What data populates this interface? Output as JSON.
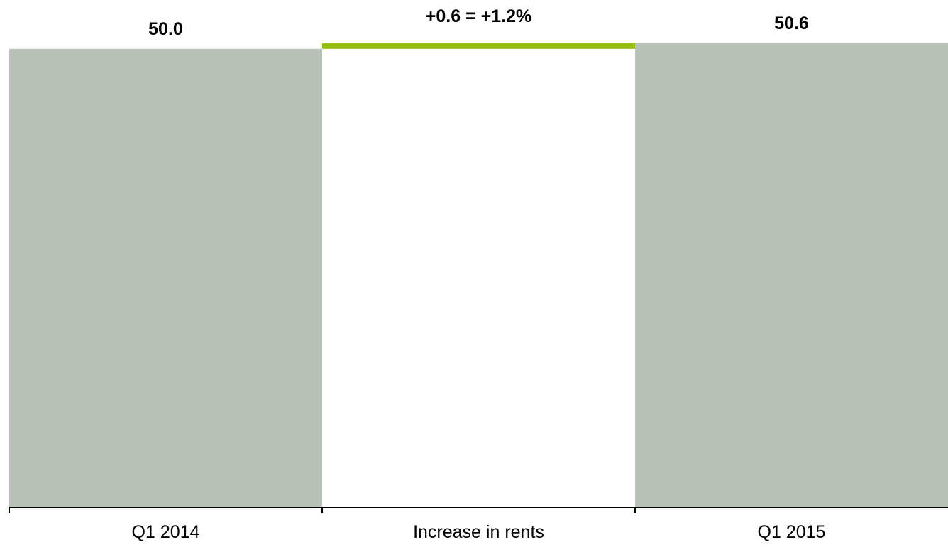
{
  "chart_data": {
    "type": "bar",
    "subtype": "waterfall",
    "categories": [
      "Q1 2014",
      "Increase in rents",
      "Q1 2015"
    ],
    "values": [
      50.0,
      0.6,
      50.6
    ],
    "bar_kinds": [
      "total",
      "delta",
      "total"
    ],
    "data_labels": [
      "50.0",
      "+0.6 = +1.2%",
      "50.6"
    ],
    "title": "",
    "xlabel": "",
    "ylabel": "",
    "ylim": [
      0,
      51.3
    ],
    "grid": false,
    "legend": "none",
    "colors": {
      "total_bar": "#b9c2b7",
      "delta_bar": "#96bf0d",
      "axis": "#000000"
    }
  }
}
